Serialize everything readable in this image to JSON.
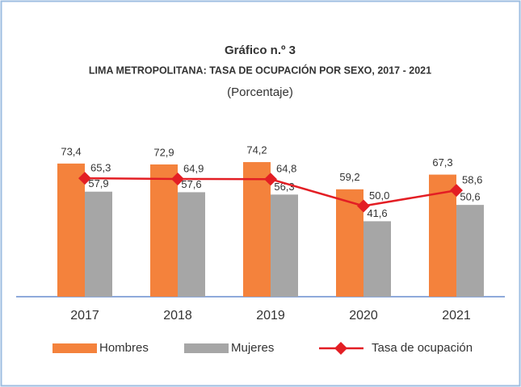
{
  "chart_data": {
    "type": "bar",
    "title": "Gráfico n.º 3",
    "subtitle": "LIMA METROPOLITANA: TASA DE OCUPACIÓN POR SEXO, 2017 - 2021",
    "unit_label": "(Porcentaje)",
    "categories": [
      "2017",
      "2018",
      "2019",
      "2020",
      "2021"
    ],
    "series": [
      {
        "name": "Hombres",
        "color": "#f4823c",
        "values": [
          73.4,
          72.9,
          74.2,
          59.2,
          67.3
        ],
        "value_labels": [
          "73,4",
          "72,9",
          "74,2",
          "59,2",
          "67,3"
        ]
      },
      {
        "name": "Mujeres",
        "color": "#a6a6a6",
        "values": [
          57.9,
          57.6,
          56.3,
          41.6,
          50.6
        ],
        "value_labels": [
          "57,9",
          "57,6",
          "56,3",
          "41,6",
          "50,6"
        ]
      },
      {
        "name": "Tasa de ocupación",
        "type": "line",
        "color": "#e31e24",
        "values": [
          65.3,
          64.9,
          64.8,
          50.0,
          58.6
        ],
        "value_labels": [
          "65,3",
          "64,9",
          "64,8",
          "50,0",
          "58,6"
        ]
      }
    ]
  }
}
